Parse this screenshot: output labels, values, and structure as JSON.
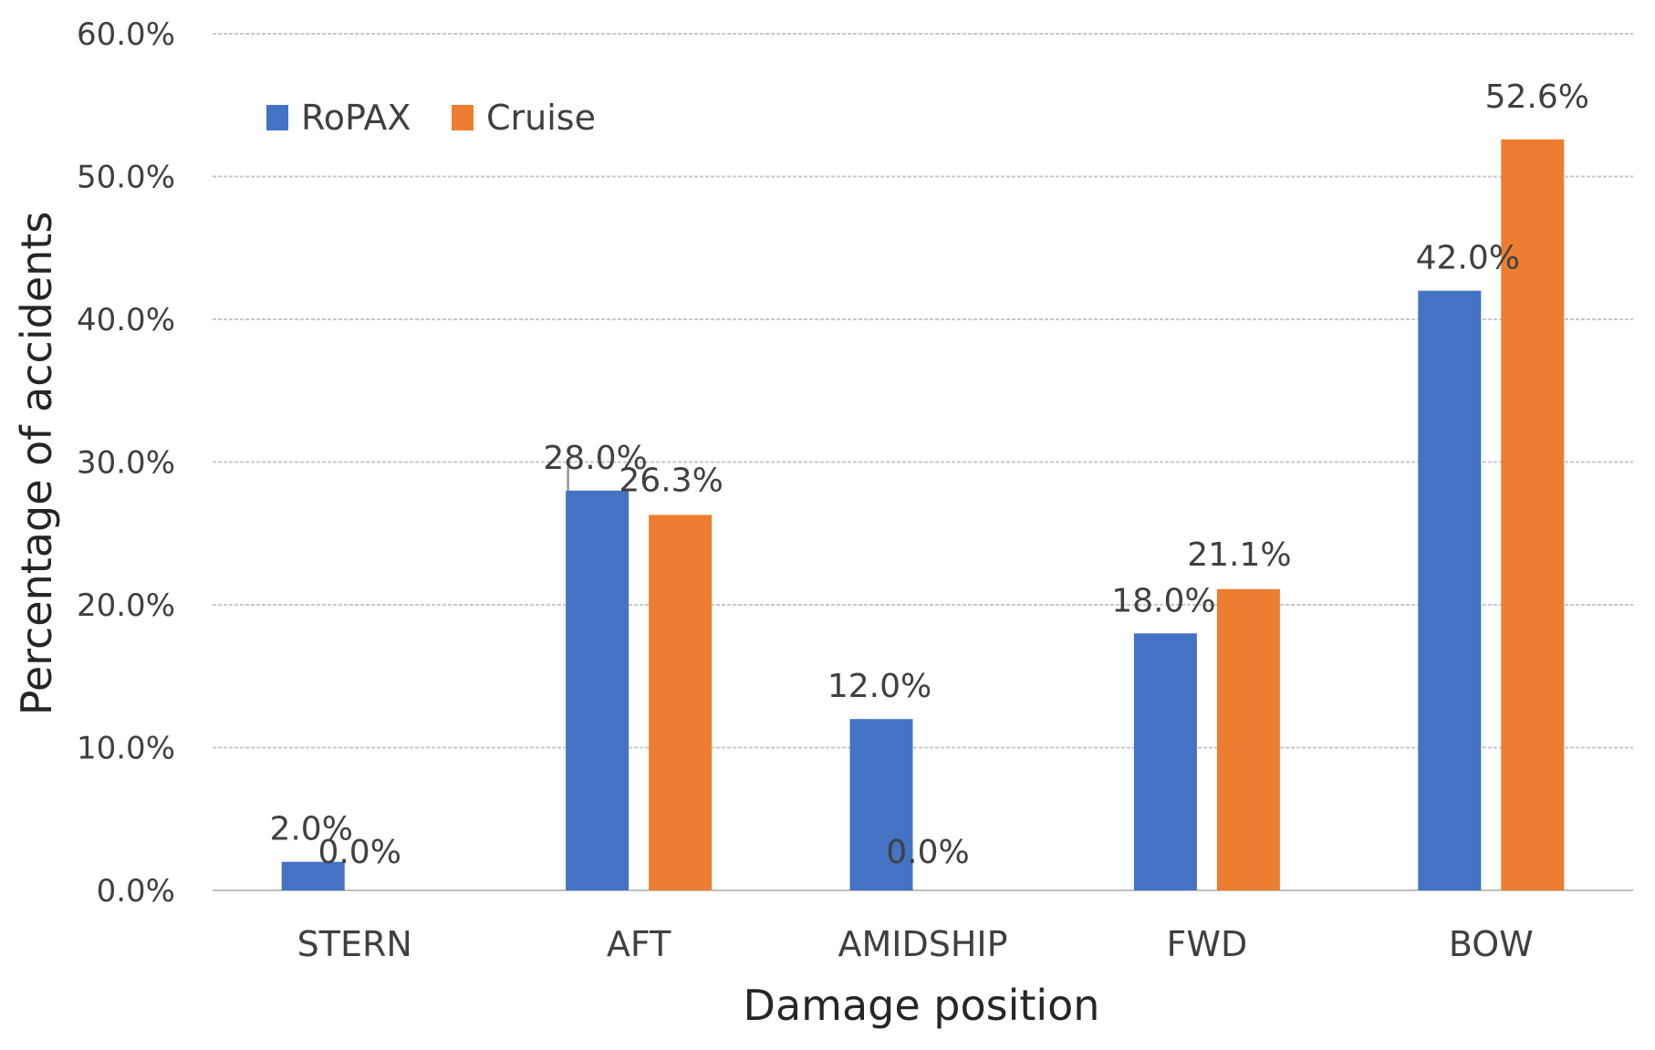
{
  "chart_data": {
    "type": "bar",
    "title": "",
    "xlabel": "Damage position",
    "ylabel": "Percentage of accidents",
    "ylim": [
      0,
      60
    ],
    "yticks": [
      0,
      10,
      20,
      30,
      40,
      50,
      60
    ],
    "ytick_labels": [
      "0.0%",
      "10.0%",
      "20.0%",
      "30.0%",
      "40.0%",
      "50.0%",
      "60.0%"
    ],
    "grid": true,
    "legend_position": "top-left",
    "categories": [
      "STERN",
      "AFT",
      "AMIDSHIP",
      "FWD",
      "BOW"
    ],
    "series": [
      {
        "name": "RoPAX",
        "color": "#4472C4",
        "values": [
          2.0,
          28.0,
          12.0,
          18.0,
          42.0
        ],
        "labels": [
          "2.0%",
          "28.0%",
          "12.0%",
          "18.0%",
          "42.0%"
        ]
      },
      {
        "name": "Cruise",
        "color": "#ED7D31",
        "values": [
          0.0,
          26.3,
          0.0,
          21.1,
          52.6
        ],
        "labels": [
          "0.0%",
          "26.3%",
          "0.0%",
          "21.1%",
          "52.6%"
        ]
      }
    ]
  }
}
